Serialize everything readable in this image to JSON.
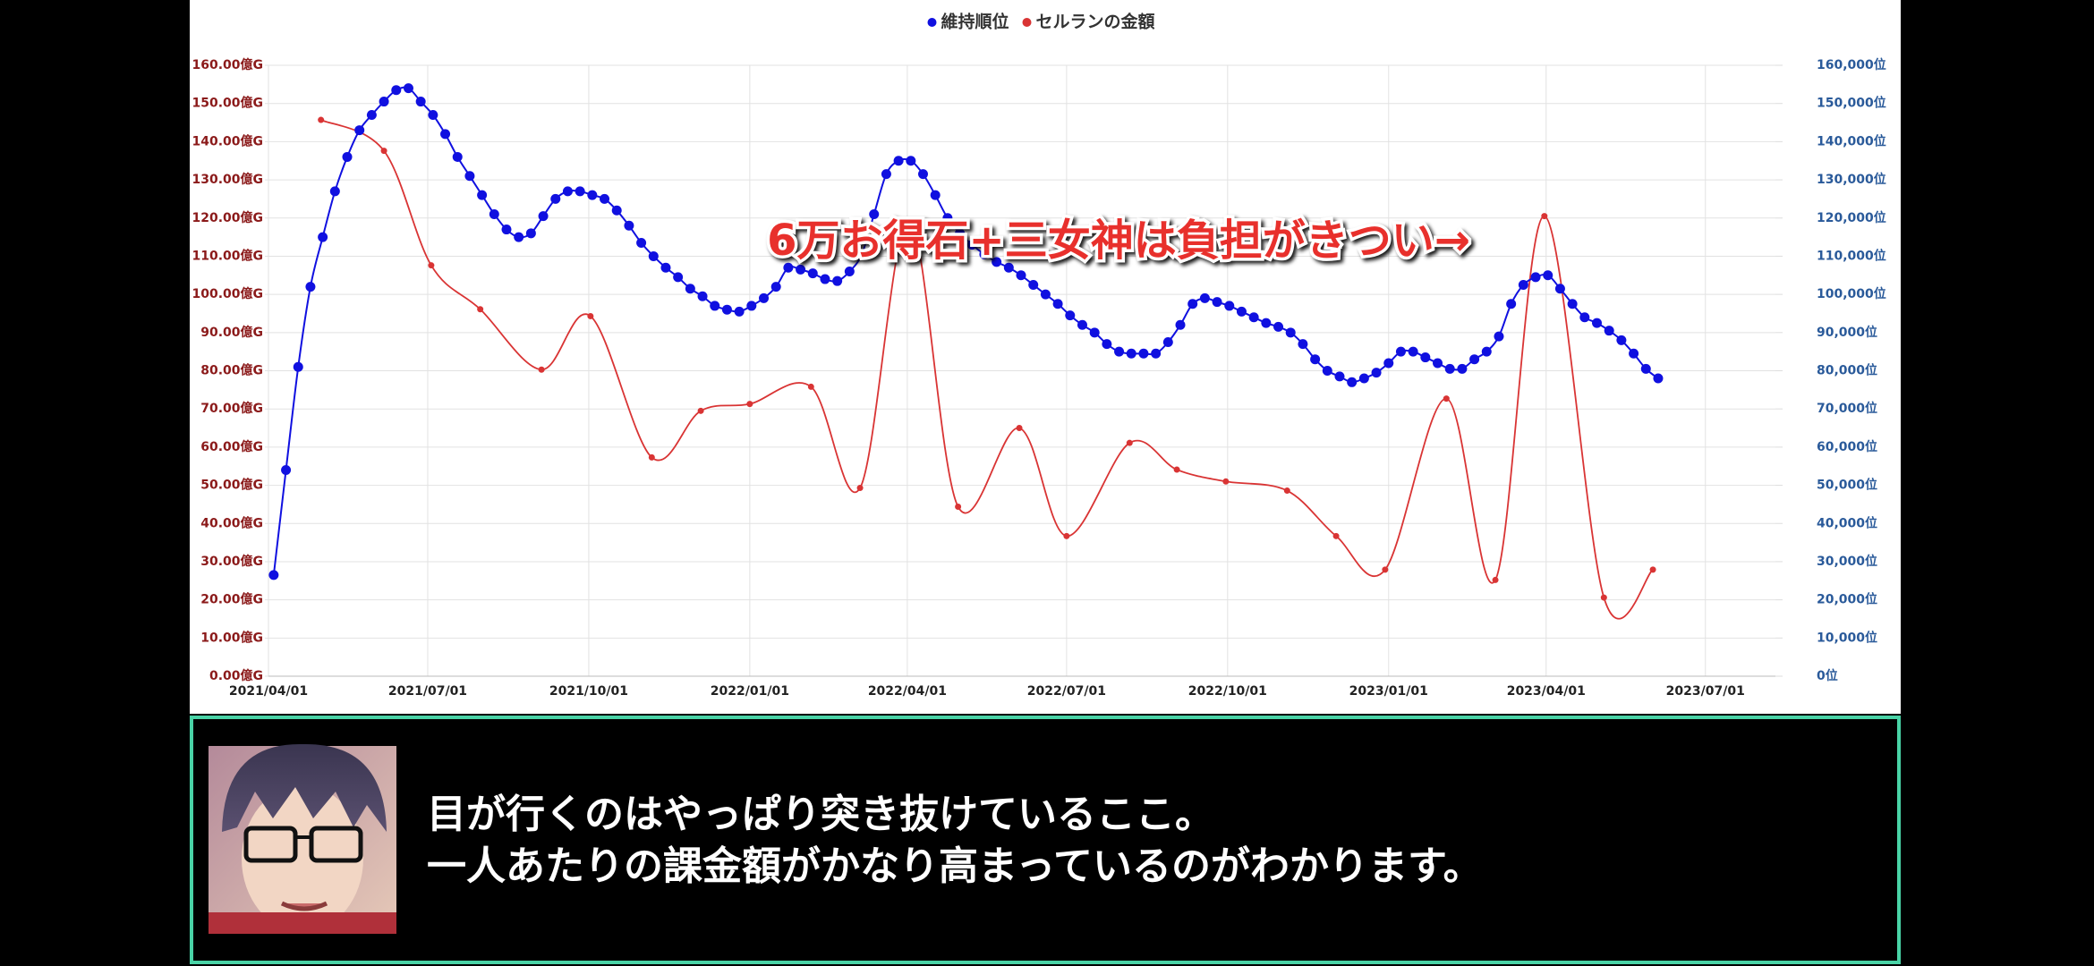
{
  "chart_data": {
    "type": "line",
    "annotation": "6万お得石+三女神は負担がきつい→",
    "xlim": [
      "2021/04/01",
      "2023/08/10"
    ],
    "xticks": [
      "2021/04/01",
      "2021/07/01",
      "2021/10/01",
      "2022/01/01",
      "2022/04/01",
      "2022/07/01",
      "2022/10/01",
      "2023/01/01",
      "2023/04/01",
      "2023/07/01"
    ],
    "ylim": [
      0,
      160
    ],
    "yticks": [
      {
        "value": 0,
        "label": "0.00億G"
      },
      {
        "value": 10,
        "label": "10.00億G"
      },
      {
        "value": 20,
        "label": "20.00億G"
      },
      {
        "value": 30,
        "label": "30.00億G"
      },
      {
        "value": 40,
        "label": "40.00億G"
      },
      {
        "value": 50,
        "label": "50.00億G"
      },
      {
        "value": 60,
        "label": "60.00億G"
      },
      {
        "value": 70,
        "label": "70.00億G"
      },
      {
        "value": 80,
        "label": "80.00億G"
      },
      {
        "value": 90,
        "label": "90.00億G"
      },
      {
        "value": 100,
        "label": "100.00億G"
      },
      {
        "value": 110,
        "label": "110.00億G"
      },
      {
        "value": 120,
        "label": "120.00億G"
      },
      {
        "value": 130,
        "label": "130.00億G"
      },
      {
        "value": 140,
        "label": "140.00億G"
      },
      {
        "value": 150,
        "label": "150.00億G"
      },
      {
        "value": 160,
        "label": "160.00億G"
      }
    ],
    "y2lim": [
      0,
      160000
    ],
    "y2ticks": [
      {
        "value": 0,
        "label": "0位"
      },
      {
        "value": 10000,
        "label": "10,000位"
      },
      {
        "value": 20000,
        "label": "20,000位"
      },
      {
        "value": 30000,
        "label": "30,000位"
      },
      {
        "value": 40000,
        "label": "40,000位"
      },
      {
        "value": 50000,
        "label": "50,000位"
      },
      {
        "value": 60000,
        "label": "60,000位"
      },
      {
        "value": 70000,
        "label": "70,000位"
      },
      {
        "value": 80000,
        "label": "80,000位"
      },
      {
        "value": 90000,
        "label": "90,000位"
      },
      {
        "value": 100000,
        "label": "100,000位"
      },
      {
        "value": 110000,
        "label": "110,000位"
      },
      {
        "value": 120000,
        "label": "120,000位"
      },
      {
        "value": 130000,
        "label": "130,000位"
      },
      {
        "value": 140000,
        "label": "140,000位"
      },
      {
        "value": 150000,
        "label": "150,000位"
      },
      {
        "value": 160000,
        "label": "160,000位"
      }
    ],
    "grid": true,
    "legend": "top",
    "series": [
      {
        "name": "維持順位",
        "color": "#1010e0",
        "axis": "y2",
        "x": [
          "2021/04/04",
          "2021/04/11",
          "2021/04/18",
          "2021/04/25",
          "2021/05/02",
          "2021/05/09",
          "2021/05/16",
          "2021/05/23",
          "2021/05/30",
          "2021/06/06",
          "2021/06/13",
          "2021/06/20",
          "2021/06/27",
          "2021/07/04",
          "2021/07/11",
          "2021/07/18",
          "2021/07/25",
          "2021/08/01",
          "2021/08/08",
          "2021/08/15",
          "2021/08/22",
          "2021/08/29",
          "2021/09/05",
          "2021/09/12",
          "2021/09/19",
          "2021/09/26",
          "2021/10/03",
          "2021/10/10",
          "2021/10/17",
          "2021/10/24",
          "2021/10/31",
          "2021/11/07",
          "2021/11/14",
          "2021/11/21",
          "2021/11/28",
          "2021/12/05",
          "2021/12/12",
          "2021/12/19",
          "2021/12/26",
          "2022/01/02",
          "2022/01/09",
          "2022/01/16",
          "2022/01/23",
          "2022/01/30",
          "2022/02/06",
          "2022/02/13",
          "2022/02/20",
          "2022/02/27",
          "2022/03/06",
          "2022/03/13",
          "2022/03/20",
          "2022/03/27",
          "2022/04/03",
          "2022/04/10",
          "2022/04/17",
          "2022/04/24",
          "2022/05/01",
          "2022/05/08",
          "2022/05/15",
          "2022/05/22",
          "2022/05/29",
          "2022/06/05",
          "2022/06/12",
          "2022/06/19",
          "2022/06/26",
          "2022/07/03",
          "2022/07/10",
          "2022/07/17",
          "2022/07/24",
          "2022/07/31",
          "2022/08/07",
          "2022/08/14",
          "2022/08/21",
          "2022/08/28",
          "2022/09/04",
          "2022/09/11",
          "2022/09/18",
          "2022/09/25",
          "2022/10/02",
          "2022/10/09",
          "2022/10/16",
          "2022/10/23",
          "2022/10/30",
          "2022/11/06",
          "2022/11/13",
          "2022/11/20",
          "2022/11/27",
          "2022/12/04",
          "2022/12/11",
          "2022/12/18",
          "2022/12/25",
          "2023/01/01",
          "2023/01/08",
          "2023/01/15",
          "2023/01/22",
          "2023/01/29",
          "2023/02/05",
          "2023/02/12",
          "2023/02/19",
          "2023/02/26",
          "2023/03/05",
          "2023/03/12",
          "2023/03/19",
          "2023/03/26",
          "2023/04/02",
          "2023/04/09",
          "2023/04/16",
          "2023/04/23",
          "2023/04/30",
          "2023/05/07",
          "2023/05/14",
          "2023/05/21",
          "2023/05/28",
          "2023/06/04"
        ],
        "values": [
          26500,
          54000,
          81000,
          102000,
          115000,
          127000,
          136000,
          143000,
          147000,
          150500,
          153500,
          154000,
          150500,
          147000,
          142000,
          136000,
          131000,
          126000,
          121000,
          117000,
          115000,
          116000,
          120500,
          125000,
          127000,
          127000,
          126000,
          125000,
          122000,
          118000,
          113500,
          110000,
          107000,
          104500,
          101500,
          99500,
          97000,
          96000,
          95500,
          97000,
          99000,
          102000,
          107000,
          106500,
          105500,
          104000,
          103500,
          106000,
          110500,
          121000,
          131500,
          135000,
          135000,
          131500,
          126000,
          120000,
          116000,
          113000,
          110500,
          108500,
          107000,
          105000,
          102500,
          100000,
          97500,
          94500,
          92000,
          90000,
          87000,
          85000,
          84500,
          84500,
          84500,
          87500,
          92000,
          97500,
          99000,
          98000,
          97000,
          95500,
          94000,
          92500,
          91500,
          90000,
          87000,
          83000,
          80000,
          78500,
          77000,
          78000,
          79500,
          82000,
          85000,
          85000,
          83500,
          82000,
          80500,
          80500,
          83000,
          85000,
          89000,
          97500,
          102500,
          104500,
          105000,
          101500,
          97500,
          94000,
          92500,
          90500,
          88000,
          84500,
          80500,
          78000
        ]
      },
      {
        "name": "セルランの金額",
        "color": "#d93434",
        "axis": "y",
        "x": [
          "2021/05/01",
          "2021/06/06",
          "2021/07/03",
          "2021/07/31",
          "2021/09/04",
          "2021/10/02",
          "2021/11/06",
          "2021/12/04",
          "2022/01/01",
          "2022/02/05",
          "2022/03/05",
          "2022/04/02",
          "2022/04/30",
          "2022/06/04",
          "2022/07/01",
          "2022/08/06",
          "2022/09/02",
          "2022/09/30",
          "2022/11/04",
          "2022/12/02",
          "2022/12/30",
          "2023/02/03",
          "2023/03/03",
          "2023/03/31",
          "2023/05/04",
          "2023/06/01"
        ],
        "values": [
          145.7,
          137.6,
          107.6,
          96.1,
          80.3,
          94.3,
          57.3,
          69.5,
          71.3,
          75.8,
          49.3,
          119.5,
          44.4,
          65.0,
          36.7,
          61.1,
          54.1,
          51.0,
          48.6,
          36.7,
          27.9,
          72.7,
          25.2,
          120.5,
          20.6,
          27.9
        ]
      }
    ]
  },
  "caption": {
    "lines": [
      "目が行くのはやっぱり突き抜けているここ。",
      "一人あたりの課金額がかなり高まっているのがわかります。"
    ]
  }
}
